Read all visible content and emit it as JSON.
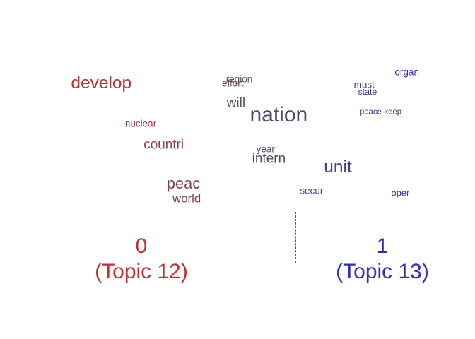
{
  "chart_data": {
    "type": "scatter",
    "title": "",
    "poles": [
      {
        "value": "0",
        "label": "(Topic 12)",
        "color": "#c0313a"
      },
      {
        "value": "1",
        "label": "(Topic 13)",
        "color": "#2f2fb0"
      }
    ],
    "x_range": [
      0,
      1
    ],
    "words": [
      {
        "text": "develop",
        "x": 0.05,
        "y": 0.9,
        "weight": 3
      },
      {
        "text": "organ",
        "x": 0.98,
        "y": 0.98,
        "weight": 1
      },
      {
        "text": "region",
        "x": 0.47,
        "y": 0.93,
        "weight": 1
      },
      {
        "text": "effort",
        "x": 0.45,
        "y": 0.9,
        "weight": 1
      },
      {
        "text": "must",
        "x": 0.85,
        "y": 0.89,
        "weight": 1
      },
      {
        "text": "state",
        "x": 0.86,
        "y": 0.84,
        "weight": 0.8
      },
      {
        "text": "will",
        "x": 0.46,
        "y": 0.76,
        "weight": 2
      },
      {
        "text": "nation",
        "x": 0.59,
        "y": 0.68,
        "weight": 4
      },
      {
        "text": "peace-keep",
        "x": 0.9,
        "y": 0.7,
        "weight": 0.6
      },
      {
        "text": "nuclear",
        "x": 0.17,
        "y": 0.62,
        "weight": 1
      },
      {
        "text": "countri",
        "x": 0.24,
        "y": 0.47,
        "weight": 2
      },
      {
        "text": "year",
        "x": 0.55,
        "y": 0.44,
        "weight": 1
      },
      {
        "text": "intern",
        "x": 0.56,
        "y": 0.37,
        "weight": 2
      },
      {
        "text": "unit",
        "x": 0.77,
        "y": 0.31,
        "weight": 3
      },
      {
        "text": "peac",
        "x": 0.3,
        "y": 0.2,
        "weight": 2.5
      },
      {
        "text": "secur",
        "x": 0.69,
        "y": 0.15,
        "weight": 1
      },
      {
        "text": "oper",
        "x": 0.96,
        "y": 0.13,
        "weight": 0.9
      },
      {
        "text": "world",
        "x": 0.31,
        "y": 0.09,
        "weight": 1.6
      }
    ]
  }
}
